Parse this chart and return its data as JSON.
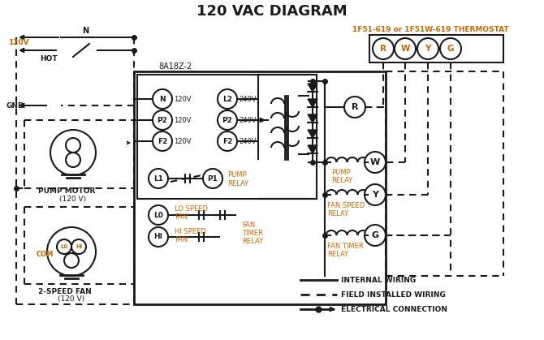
{
  "title": "120 VAC DIAGRAM",
  "bg_color": "#ffffff",
  "color_main": "#1a1a1a",
  "orange": "#cc6600",
  "thermostat_label": "1F51-619 or 1F51W-619 THERMOSTAT",
  "box_label": "8A18Z-2",
  "thermostat_terminals": [
    "R",
    "W",
    "Y",
    "G"
  ],
  "left_terms": [
    [
      "N",
      200,
      122
    ],
    [
      "P2",
      200,
      148
    ],
    [
      "F2",
      200,
      174
    ]
  ],
  "right_terms": [
    [
      "L2",
      278,
      122
    ],
    [
      "P2",
      278,
      148
    ],
    [
      "F2",
      278,
      174
    ]
  ],
  "lower_terms": [
    [
      "L1",
      200,
      218
    ],
    [
      "P1",
      258,
      218
    ],
    [
      "L0",
      200,
      265
    ],
    [
      "HI",
      200,
      292
    ]
  ],
  "legend_items": [
    "INTERNAL WIRING",
    "FIELD INSTALLED WIRING",
    "ELECTRICAL CONNECTION"
  ]
}
